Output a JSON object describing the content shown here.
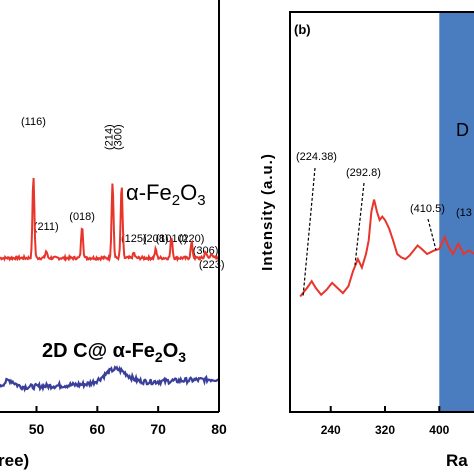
{
  "chart_data": [
    {
      "panel": "a",
      "type": "line",
      "xlabel_visible": "ree)",
      "xlim": [
        44,
        80
      ],
      "x_ticks": [
        50,
        60,
        70,
        80
      ],
      "x_tick_labels": [
        "50",
        "60",
        "70",
        "80"
      ],
      "grid": false,
      "colors": {
        "alpha": "#e8352b",
        "composite": "#3a3f9a"
      },
      "series": [
        {
          "name": "α-Fe2O3",
          "label_parts": {
            "main": "α-Fe",
            "sub1": "2",
            "mid": "O",
            "sub2": "3"
          },
          "color": "#e8352b",
          "peaks": [
            {
              "x": 49.5,
              "label": "(116)",
              "height": 0.95
            },
            {
              "x": 51.6,
              "label": "(211)",
              "height": 0.08
            },
            {
              "x": 57.5,
              "label": "(018)",
              "height": 0.38
            },
            {
              "x": 62.5,
              "label": "(214)",
              "height": 0.9
            },
            {
              "x": 64.0,
              "label": "(300)",
              "height": 0.85
            },
            {
              "x": 66.0,
              "label": "(125)",
              "height": 0.06
            },
            {
              "x": 69.6,
              "label": "(208)",
              "height": 0.1
            },
            {
              "x": 72.2,
              "label": "(1010)",
              "height": 0.25
            },
            {
              "x": 75.5,
              "label": "(220)",
              "height": 0.18
            },
            {
              "x": 77.8,
              "label": "(306)",
              "height": 0.08
            },
            {
              "x": 78.8,
              "label": "(223)",
              "height": 0.06
            }
          ]
        },
        {
          "name": "2D C@ α-Fe2O3",
          "label_parts": {
            "main": "2D  C@ α-Fe",
            "sub1": "2",
            "mid": "O",
            "sub2": "3"
          },
          "color": "#3a3f9a"
        }
      ]
    },
    {
      "panel": "b",
      "panel_label": "(b)",
      "type": "line",
      "ylabel": "Intensity (a.u.)",
      "xlabel_visible": "Ra",
      "xlim": [
        180,
        460
      ],
      "x_ticks": [
        240,
        320,
        400
      ],
      "x_tick_labels": [
        "240",
        "320",
        "400"
      ],
      "shaded_region": {
        "from": 400,
        "to": 460,
        "color": "#4a7dbf",
        "label_visible": "D"
      },
      "color": "#e8352b",
      "points": [
        [
          195,
          0.05
        ],
        [
          205,
          0.1
        ],
        [
          212,
          0.14
        ],
        [
          218,
          0.1
        ],
        [
          226,
          0.06
        ],
        [
          234,
          0.09
        ],
        [
          242,
          0.13
        ],
        [
          250,
          0.1
        ],
        [
          258,
          0.07
        ],
        [
          266,
          0.11
        ],
        [
          273,
          0.2
        ],
        [
          280,
          0.27
        ],
        [
          286,
          0.22
        ],
        [
          292,
          0.3
        ],
        [
          296,
          0.38
        ],
        [
          300,
          0.55
        ],
        [
          304,
          0.62
        ],
        [
          308,
          0.55
        ],
        [
          312,
          0.5
        ],
        [
          316,
          0.52
        ],
        [
          320,
          0.5
        ],
        [
          326,
          0.45
        ],
        [
          332,
          0.38
        ],
        [
          338,
          0.3
        ],
        [
          344,
          0.28
        ],
        [
          350,
          0.27
        ],
        [
          356,
          0.29
        ],
        [
          362,
          0.32
        ],
        [
          368,
          0.35
        ],
        [
          374,
          0.33
        ],
        [
          382,
          0.3
        ],
        [
          392,
          0.32
        ],
        [
          400,
          0.33
        ],
        [
          408,
          0.4
        ],
        [
          414,
          0.34
        ],
        [
          420,
          0.3
        ],
        [
          428,
          0.36
        ],
        [
          436,
          0.3
        ],
        [
          444,
          0.32
        ],
        [
          452,
          0.3
        ]
      ],
      "annotations": [
        {
          "label": "(224.38)",
          "x": 224.38
        },
        {
          "label": "(292.8)",
          "x": 292.8
        },
        {
          "label": "(410.5)",
          "x": 410.5
        },
        {
          "label": "(13",
          "x": 440
        }
      ]
    }
  ]
}
